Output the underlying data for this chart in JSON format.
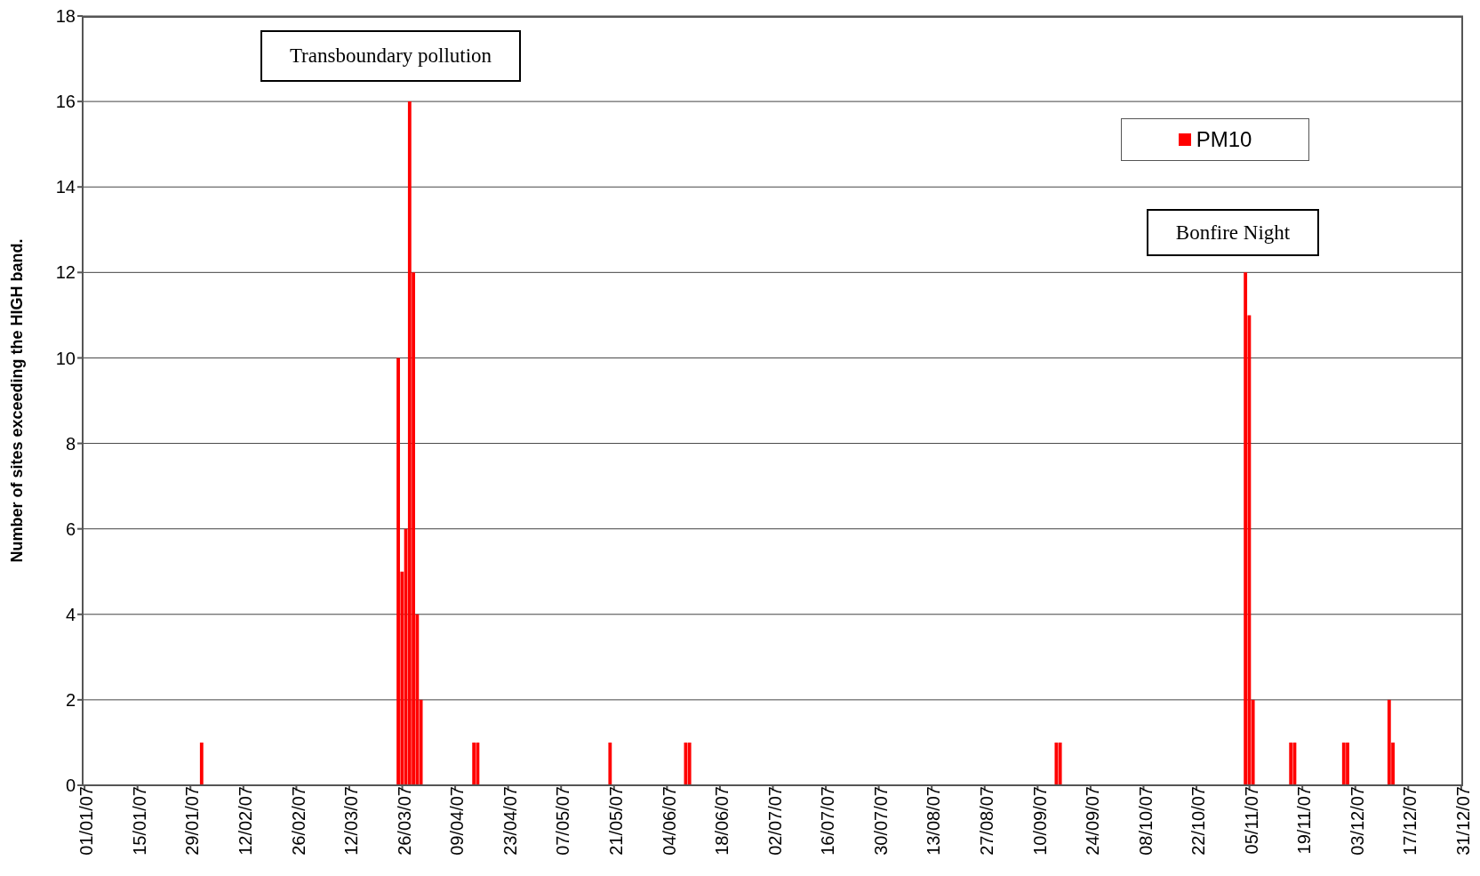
{
  "chart_data": {
    "type": "bar",
    "ylabel": "Number of sites exceeding the HIGH band.",
    "annotations": [
      "Transboundary pollution",
      "Bonfire Night"
    ],
    "x": [
      "--02-01",
      "--03-25",
      "--03-26",
      "--03-27",
      "--03-28",
      "--03-29",
      "--03-30",
      "--03-31",
      "--04-14",
      "--04-15",
      "--05-20",
      "--06-09",
      "--06-10",
      "--09-15",
      "--09-16",
      "--11-04",
      "--11-05",
      "--11-06",
      "--11-16",
      "--11-17",
      "--11-30",
      "--12-01",
      "--12-12",
      "--12-13"
    ],
    "series": [
      {
        "name": "PM10",
        "color": "#ff0000",
        "values": [
          1,
          10,
          5,
          6,
          16,
          12,
          4,
          2,
          1,
          1,
          1,
          1,
          1,
          1,
          1,
          12,
          11,
          2,
          1,
          1,
          1,
          1,
          2,
          1
        ]
      }
    ],
    "xlim": [
      "--01-01",
      "--12-31"
    ],
    "xticks": [
      {
        "value": "--01-01",
        "label": "01/01/07"
      },
      {
        "value": "--01-15",
        "label": "15/01/07"
      },
      {
        "value": "--01-29",
        "label": "29/01/07"
      },
      {
        "value": "--02-12",
        "label": "12/02/07"
      },
      {
        "value": "--02-26",
        "label": "26/02/07"
      },
      {
        "value": "--03-12",
        "label": "12/03/07"
      },
      {
        "value": "--03-26",
        "label": "26/03/07"
      },
      {
        "value": "--04-09",
        "label": "09/04/07"
      },
      {
        "value": "--04-23",
        "label": "23/04/07"
      },
      {
        "value": "--05-07",
        "label": "07/05/07"
      },
      {
        "value": "--05-21",
        "label": "21/05/07"
      },
      {
        "value": "--06-04",
        "label": "04/06/07"
      },
      {
        "value": "--06-18",
        "label": "18/06/07"
      },
      {
        "value": "--07-02",
        "label": "02/07/07"
      },
      {
        "value": "--07-16",
        "label": "16/07/07"
      },
      {
        "value": "--07-30",
        "label": "30/07/07"
      },
      {
        "value": "--08-13",
        "label": "13/08/07"
      },
      {
        "value": "--08-27",
        "label": "27/08/07"
      },
      {
        "value": "--09-10",
        "label": "10/09/07"
      },
      {
        "value": "--09-24",
        "label": "24/09/07"
      },
      {
        "value": "--10-08",
        "label": "08/10/07"
      },
      {
        "value": "--10-22",
        "label": "22/10/07"
      },
      {
        "value": "--11-05",
        "label": "05/11/07"
      },
      {
        "value": "--11-19",
        "label": "19/11/07"
      },
      {
        "value": "--12-03",
        "label": "03/12/07"
      },
      {
        "value": "--12-17",
        "label": "17/12/07"
      },
      {
        "value": "--12-31",
        "label": "31/12/07"
      }
    ],
    "ylim": [
      0,
      18
    ],
    "yticks": [
      0,
      2,
      4,
      6,
      8,
      10,
      12,
      14,
      16,
      18
    ],
    "grid": "y",
    "legend": "top right"
  }
}
